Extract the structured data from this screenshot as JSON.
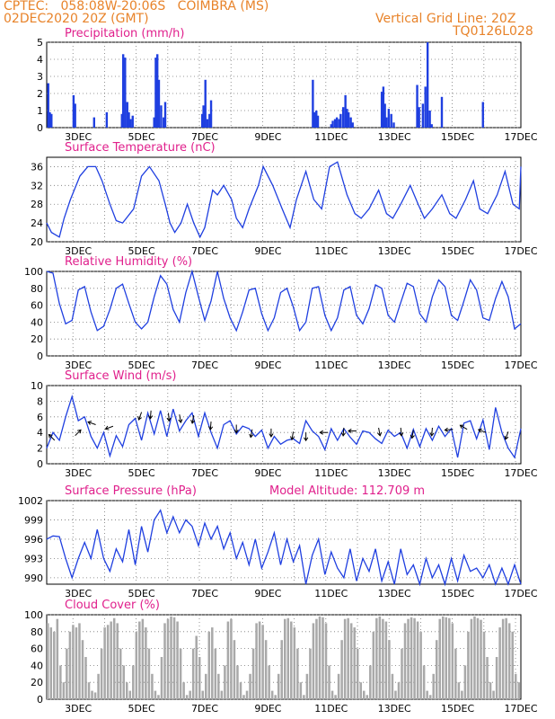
{
  "header": {
    "line1_left": "CPTEC:   058:08W-20:06S   COIMBRA (MS)",
    "line2_left": "02DEC2020 20Z (GMT)",
    "line1_right": "Vertical Grid Line: 20Z",
    "line2_right": "TQ0126L028",
    "color": "#e8832a"
  },
  "colors": {
    "title": "#e0208c",
    "line": "#1f3fe0",
    "bar": "#1f3fe0",
    "cloud": "#a9a9a9",
    "arrow": "#000000"
  },
  "x_ticks": [
    "3DEC",
    "5DEC",
    "7DEC",
    "9DEC",
    "11DEC",
    "13DEC",
    "15DEC",
    "17DEC"
  ],
  "chart_data": [
    {
      "type": "bar",
      "title": "Precipitation (mm/h)",
      "ylim": [
        0,
        5
      ],
      "yticks": [
        0,
        1,
        2,
        3,
        4,
        5
      ],
      "x_unit": "day of December 2020 (fractional)",
      "x": [
        2.05,
        2.1,
        2.15,
        2.85,
        2.9,
        3.5,
        3.9,
        4.38,
        4.42,
        4.48,
        4.55,
        4.6,
        4.65,
        4.72,
        5.4,
        5.45,
        5.5,
        5.55,
        5.62,
        5.7,
        5.75,
        6.92,
        6.96,
        7.02,
        7.08,
        7.15,
        7.2,
        10.42,
        10.48,
        10.53,
        10.58,
        11.0,
        11.05,
        11.12,
        11.18,
        11.25,
        11.3,
        11.38,
        11.45,
        11.5,
        11.55,
        11.62,
        11.68,
        12.6,
        12.65,
        12.7,
        12.75,
        12.82,
        12.9,
        12.98,
        13.72,
        13.78,
        13.9,
        13.98,
        14.05,
        14.12,
        14.18,
        14.5,
        15.8
      ],
      "values": [
        2.6,
        0.9,
        0.8,
        1.9,
        1.4,
        0.6,
        0.9,
        0.8,
        4.3,
        4.1,
        1.5,
        0.9,
        0.5,
        0.7,
        0.6,
        4.1,
        4.3,
        2.8,
        1.3,
        0.6,
        1.5,
        0.8,
        1.3,
        2.8,
        0.5,
        0.8,
        1.6,
        2.8,
        0.9,
        1.0,
        0.7,
        0.2,
        0.4,
        0.5,
        0.6,
        0.5,
        0.8,
        1.2,
        1.9,
        1.1,
        0.9,
        0.6,
        0.3,
        2.1,
        2.4,
        1.4,
        0.6,
        1.1,
        0.8,
        0.3,
        2.5,
        1.2,
        1.4,
        2.4,
        5.0,
        1.0,
        0.2,
        1.8,
        1.5
      ]
    },
    {
      "type": "line",
      "title": "Surface Temperature (nC)",
      "ylim": [
        20,
        38
      ],
      "yticks": [
        20,
        24,
        28,
        32,
        36
      ],
      "x": [
        2.0,
        2.15,
        2.4,
        2.55,
        2.75,
        3.05,
        3.3,
        3.55,
        3.75,
        4.0,
        4.2,
        4.4,
        4.75,
        5.0,
        5.25,
        5.55,
        5.75,
        5.9,
        6.05,
        6.25,
        6.45,
        6.65,
        6.85,
        7.0,
        7.25,
        7.4,
        7.6,
        7.85,
        8.0,
        8.2,
        8.4,
        8.7,
        8.85,
        9.15,
        9.45,
        9.7,
        9.9,
        10.2,
        10.45,
        10.7,
        10.95,
        11.2,
        11.5,
        11.75,
        11.95,
        12.2,
        12.5,
        12.75,
        12.95,
        13.2,
        13.5,
        13.75,
        13.95,
        14.2,
        14.5,
        14.75,
        14.95,
        15.25,
        15.5,
        15.7,
        15.95,
        16.25,
        16.5,
        16.75,
        16.95
      ],
      "values": [
        24,
        22,
        21,
        25,
        29,
        34,
        36,
        36,
        33,
        28,
        24.5,
        24,
        27,
        34,
        36,
        33,
        28,
        24,
        22,
        24,
        28,
        24,
        21,
        23,
        31,
        30,
        32,
        29,
        25,
        23,
        27,
        32,
        36,
        32,
        27,
        23,
        29,
        35,
        29,
        27,
        36,
        37,
        30,
        26,
        25,
        27,
        31,
        26,
        25,
        28,
        32,
        28,
        25,
        27,
        30,
        26,
        25,
        29,
        33,
        27,
        26,
        30,
        35,
        28,
        27
      ],
      "extra_x": [
        17.0
      ],
      "extra_values": [
        36
      ]
    },
    {
      "type": "line",
      "title": "Relative Humidity (%)",
      "ylim": [
        0,
        100
      ],
      "yticks": [
        0,
        20,
        40,
        60,
        80,
        100
      ],
      "x": [
        2.0,
        2.2,
        2.4,
        2.6,
        2.8,
        3.0,
        3.2,
        3.4,
        3.6,
        3.8,
        4.0,
        4.2,
        4.4,
        4.6,
        4.8,
        5.0,
        5.2,
        5.4,
        5.6,
        5.8,
        6.0,
        6.2,
        6.4,
        6.6,
        6.8,
        7.0,
        7.2,
        7.4,
        7.6,
        7.8,
        8.0,
        8.2,
        8.4,
        8.6,
        8.8,
        9.0,
        9.2,
        9.4,
        9.6,
        9.8,
        10.0,
        10.2,
        10.4,
        10.6,
        10.8,
        11.0,
        11.2,
        11.4,
        11.6,
        11.8,
        12.0,
        12.2,
        12.4,
        12.6,
        12.8,
        13.0,
        13.2,
        13.4,
        13.6,
        13.8,
        14.0,
        14.2,
        14.4,
        14.6,
        14.8,
        15.0,
        15.2,
        15.4,
        15.6,
        15.8,
        16.0,
        16.2,
        16.4,
        16.6,
        16.8,
        17.0
      ],
      "values": [
        100,
        98,
        62,
        38,
        42,
        78,
        82,
        52,
        30,
        35,
        55,
        80,
        85,
        62,
        40,
        32,
        40,
        70,
        95,
        85,
        55,
        40,
        75,
        100,
        70,
        42,
        65,
        100,
        68,
        45,
        30,
        52,
        78,
        80,
        50,
        30,
        45,
        75,
        80,
        58,
        30,
        40,
        80,
        82,
        48,
        30,
        45,
        78,
        82,
        48,
        38,
        56,
        84,
        80,
        48,
        40,
        63,
        86,
        82,
        50,
        40,
        70,
        90,
        82,
        48,
        42,
        65,
        90,
        78,
        45,
        42,
        68,
        88,
        70,
        32,
        38
      ]
    },
    {
      "type": "line",
      "title": "Surface Wind (m/s)",
      "ylim": [
        0,
        10
      ],
      "yticks": [
        0,
        2,
        4,
        6,
        8,
        10
      ],
      "x": [
        2.0,
        2.2,
        2.4,
        2.6,
        2.8,
        3.0,
        3.2,
        3.4,
        3.6,
        3.8,
        4.0,
        4.2,
        4.4,
        4.6,
        4.8,
        5.0,
        5.2,
        5.4,
        5.6,
        5.8,
        6.0,
        6.2,
        6.4,
        6.6,
        6.8,
        7.0,
        7.2,
        7.4,
        7.6,
        7.8,
        8.0,
        8.2,
        8.4,
        8.6,
        8.8,
        9.0,
        9.2,
        9.4,
        9.6,
        9.8,
        10.0,
        10.2,
        10.4,
        10.6,
        10.8,
        11.0,
        11.2,
        11.4,
        11.6,
        11.8,
        12.0,
        12.2,
        12.4,
        12.6,
        12.8,
        13.0,
        13.2,
        13.4,
        13.6,
        13.8,
        14.0,
        14.2,
        14.4,
        14.6,
        14.8,
        15.0,
        15.2,
        15.4,
        15.6,
        15.8,
        16.0,
        16.2,
        16.4,
        16.6,
        16.8,
        17.0
      ],
      "values": [
        2,
        4,
        3,
        6,
        8.6,
        5.5,
        6,
        3.5,
        2,
        4,
        1,
        3.6,
        2.2,
        5,
        5.8,
        3,
        6.5,
        3.8,
        6.8,
        3.5,
        7,
        4.2,
        5.5,
        6.5,
        3.5,
        6.5,
        4,
        2,
        5,
        5.5,
        3.8,
        4.8,
        4.5,
        3.5,
        4.3,
        2,
        3.5,
        2.5,
        3,
        3.2,
        2.6,
        5.5,
        4.2,
        3.5,
        1.8,
        4.5,
        3,
        4.5,
        3.4,
        2.5,
        4.2,
        4,
        3.2,
        2.6,
        4.3,
        3.5,
        4,
        2,
        4.4,
        2.2,
        4.5,
        3,
        4.8,
        3.5,
        4.5,
        0.8,
        5.2,
        5.5,
        3.2,
        5.6,
        1.8,
        7.2,
        4,
        2,
        0.8,
        4.5
      ],
      "arrows": [
        [
          2.25,
          3,
          225
        ],
        [
          2.9,
          3.6,
          315
        ],
        [
          3.55,
          5,
          200
        ],
        [
          4.1,
          4.8,
          160
        ],
        [
          5.0,
          6.6,
          110
        ],
        [
          5.3,
          6.8,
          95
        ],
        [
          5.85,
          6.5,
          85
        ],
        [
          6.2,
          6.3,
          80
        ],
        [
          6.65,
          6.2,
          100
        ],
        [
          7.2,
          5.4,
          95
        ],
        [
          8.0,
          5.0,
          90
        ],
        [
          8.5,
          4.4,
          100
        ],
        [
          9.1,
          4.5,
          90
        ],
        [
          9.8,
          4.1,
          100
        ],
        [
          10.2,
          4.0,
          90
        ],
        [
          10.9,
          4.0,
          180
        ],
        [
          11.4,
          4.6,
          95
        ],
        [
          11.8,
          4.2,
          180
        ],
        [
          12.5,
          4.6,
          80
        ],
        [
          13.2,
          4.6,
          85
        ],
        [
          13.6,
          4.3,
          100
        ],
        [
          14.2,
          4.6,
          95
        ],
        [
          14.85,
          4.4,
          175
        ],
        [
          15.3,
          4.4,
          210
        ],
        [
          15.9,
          4.0,
          200
        ],
        [
          16.6,
          4.1,
          110
        ]
      ]
    },
    {
      "type": "line",
      "title": "Surface Pressure (hPa)",
      "subtitle": "Model Altitude: 112.709 m",
      "ylim": [
        989,
        1002
      ],
      "yticks": [
        990,
        993,
        996,
        999,
        1002
      ],
      "x": [
        2.0,
        2.2,
        2.4,
        2.6,
        2.8,
        3.0,
        3.2,
        3.4,
        3.6,
        3.8,
        4.0,
        4.2,
        4.4,
        4.6,
        4.8,
        5.0,
        5.2,
        5.4,
        5.6,
        5.8,
        6.0,
        6.2,
        6.4,
        6.6,
        6.8,
        7.0,
        7.2,
        7.4,
        7.6,
        7.8,
        8.0,
        8.2,
        8.4,
        8.6,
        8.8,
        9.0,
        9.2,
        9.4,
        9.6,
        9.8,
        10.0,
        10.2,
        10.4,
        10.6,
        10.8,
        11.0,
        11.2,
        11.4,
        11.6,
        11.8,
        12.0,
        12.2,
        12.4,
        12.6,
        12.8,
        13.0,
        13.2,
        13.4,
        13.6,
        13.8,
        14.0,
        14.2,
        14.4,
        14.6,
        14.8,
        15.0,
        15.2,
        15.4,
        15.6,
        15.8,
        16.0,
        16.2,
        16.4,
        16.6,
        16.8,
        17.0
      ],
      "values": [
        996,
        996.5,
        996.4,
        993,
        990,
        993,
        995.5,
        993,
        997.5,
        993,
        991,
        994.5,
        992.5,
        997.5,
        992,
        998,
        994,
        999,
        1000.5,
        997,
        999.5,
        997,
        999,
        998,
        995,
        998.5,
        996,
        998,
        994.5,
        997,
        993,
        995.5,
        992,
        996,
        991.5,
        994,
        997,
        992,
        996,
        992.5,
        995,
        989,
        993.5,
        996,
        990.5,
        994,
        991.5,
        990,
        994.5,
        989.5,
        993,
        991,
        994.5,
        989.5,
        992.5,
        989,
        994.5,
        990.5,
        992,
        989,
        993,
        990,
        992,
        989,
        993,
        989.5,
        993.5,
        991,
        991.5,
        990,
        992,
        989,
        991.5,
        989,
        992,
        988.5
      ]
    },
    {
      "type": "bar",
      "title": "Cloud Cover (%)",
      "ylim": [
        0,
        100
      ],
      "yticks": [
        0,
        20,
        40,
        60,
        80,
        100
      ],
      "x": [
        2.0,
        2.1,
        2.2,
        2.3,
        2.4,
        2.5,
        2.6,
        2.7,
        2.8,
        2.9,
        3.0,
        3.1,
        3.2,
        3.3,
        3.4,
        3.5,
        3.6,
        3.7,
        3.8,
        3.9,
        4.0,
        4.1,
        4.2,
        4.3,
        4.4,
        4.5,
        4.6,
        4.7,
        4.8,
        4.9,
        5.0,
        5.1,
        5.2,
        5.3,
        5.4,
        5.5,
        5.6,
        5.7,
        5.8,
        5.9,
        6.0,
        6.1,
        6.2,
        6.3,
        6.4,
        6.5,
        6.6,
        6.7,
        6.8,
        6.9,
        7.0,
        7.1,
        7.2,
        7.3,
        7.4,
        7.5,
        7.6,
        7.7,
        7.8,
        7.9,
        8.0,
        8.1,
        8.2,
        8.3,
        8.4,
        8.5,
        8.6,
        8.7,
        8.8,
        8.9,
        9.0,
        9.1,
        9.2,
        9.3,
        9.4,
        9.5,
        9.6,
        9.7,
        9.8,
        9.9,
        10.0,
        10.1,
        10.2,
        10.3,
        10.4,
        10.5,
        10.6,
        10.7,
        10.8,
        10.9,
        11.0,
        11.1,
        11.2,
        11.3,
        11.4,
        11.5,
        11.6,
        11.7,
        11.8,
        11.9,
        12.0,
        12.1,
        12.2,
        12.3,
        12.4,
        12.5,
        12.6,
        12.7,
        12.8,
        12.9,
        13.0,
        13.1,
        13.2,
        13.3,
        13.4,
        13.5,
        13.6,
        13.7,
        13.8,
        13.9,
        14.0,
        14.1,
        14.2,
        14.3,
        14.4,
        14.5,
        14.6,
        14.7,
        14.8,
        14.9,
        15.0,
        15.1,
        15.2,
        15.3,
        15.4,
        15.5,
        15.6,
        15.7,
        15.8,
        15.9,
        16.0,
        16.1,
        16.2,
        16.3,
        16.4,
        16.5,
        16.6,
        16.7,
        16.8,
        16.9
      ],
      "values": [
        90,
        85,
        80,
        95,
        40,
        20,
        60,
        80,
        88,
        85,
        90,
        70,
        50,
        20,
        10,
        8,
        30,
        60,
        85,
        88,
        92,
        96,
        90,
        60,
        40,
        20,
        10,
        40,
        80,
        92,
        95,
        85,
        60,
        30,
        10,
        5,
        50,
        90,
        95,
        98,
        97,
        92,
        60,
        20,
        5,
        10,
        60,
        75,
        50,
        10,
        30,
        80,
        85,
        60,
        30,
        10,
        40,
        92,
        95,
        70,
        40,
        20,
        5,
        10,
        30,
        60,
        90,
        92,
        88,
        70,
        40,
        10,
        5,
        30,
        70,
        95,
        96,
        92,
        85,
        60,
        20,
        5,
        30,
        60,
        90,
        95,
        98,
        97,
        90,
        40,
        10,
        5,
        30,
        70,
        95,
        96,
        90,
        85,
        60,
        20,
        10,
        5,
        40,
        80,
        96,
        98,
        95,
        92,
        70,
        30,
        10,
        20,
        60,
        90,
        95,
        97,
        96,
        92,
        80,
        40,
        10,
        5,
        30,
        70,
        95,
        98,
        97,
        96,
        90,
        60,
        20,
        10,
        40,
        80,
        95,
        98,
        96,
        94,
        80,
        50,
        20,
        10,
        50,
        85,
        95,
        96,
        90,
        80,
        30,
        20
      ]
    }
  ]
}
